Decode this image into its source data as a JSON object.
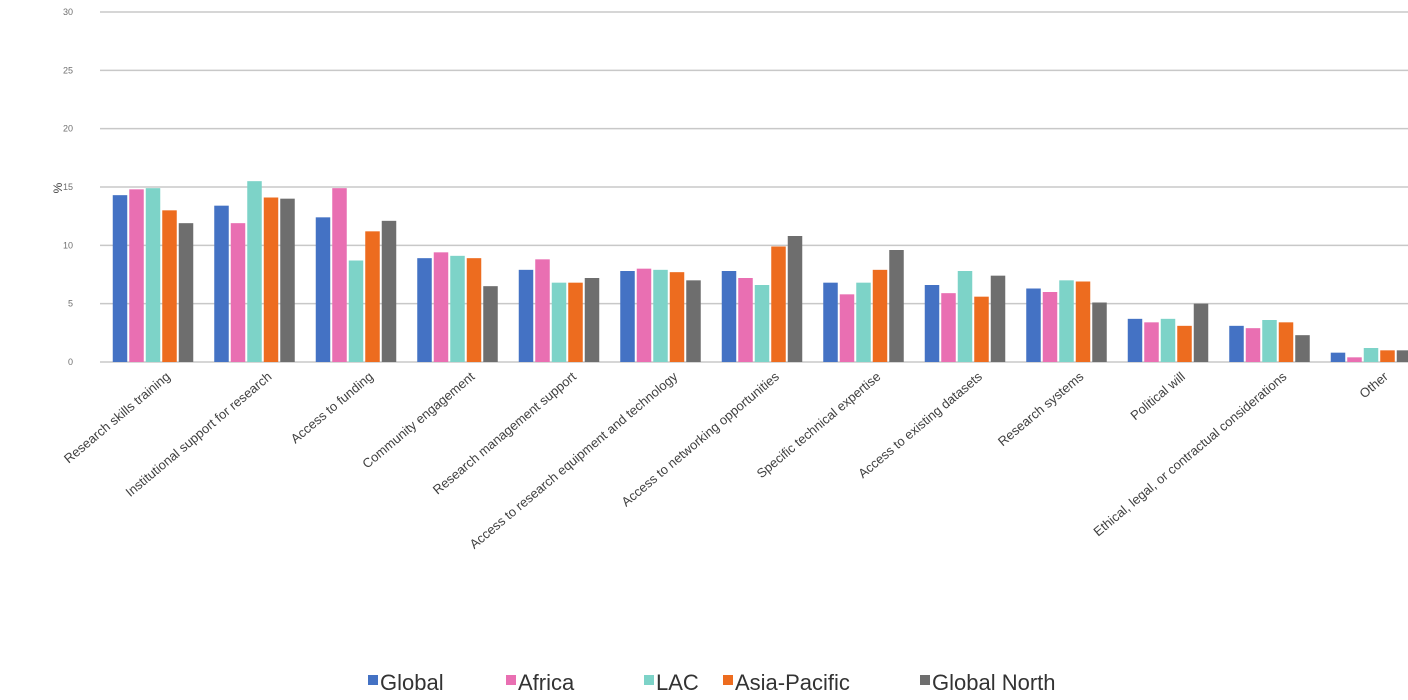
{
  "chart_data": {
    "type": "bar",
    "title": "",
    "xlabel": "",
    "ylabel": "%",
    "ylim": [
      0,
      30
    ],
    "yticks": [
      0,
      5,
      10,
      15,
      20,
      25,
      30
    ],
    "grid": true,
    "legend_position": "bottom",
    "categories": [
      "Research skills training",
      "Institutional support for research",
      "Access to funding",
      "Community engagement",
      "Research management support",
      "Access to research equipment and technology",
      "Access to networking opportunities",
      "Specific technical expertise",
      "Access to existing datasets",
      "Research systems",
      "Political will",
      "Ethical, legal, or contractual considerations",
      "Other"
    ],
    "series": [
      {
        "name": "Global",
        "color": "#4472c4",
        "values": [
          14.3,
          13.4,
          12.4,
          8.9,
          7.9,
          7.8,
          7.8,
          6.8,
          6.6,
          6.3,
          3.7,
          3.1,
          0.8
        ]
      },
      {
        "name": "Africa",
        "color": "#e96fb2",
        "values": [
          14.8,
          11.9,
          14.9,
          9.4,
          8.8,
          8.0,
          7.2,
          5.8,
          5.9,
          6.0,
          3.4,
          2.9,
          0.4
        ]
      },
      {
        "name": "LAC",
        "color": "#7dd3c8",
        "values": [
          14.9,
          15.5,
          8.7,
          9.1,
          6.8,
          7.9,
          6.6,
          6.8,
          7.8,
          7.0,
          3.7,
          3.6,
          1.2
        ]
      },
      {
        "name": "Asia-Pacific",
        "color": "#ed6c1f",
        "values": [
          13.0,
          14.1,
          11.2,
          8.9,
          6.8,
          7.7,
          9.9,
          7.9,
          5.6,
          6.9,
          3.1,
          3.4,
          1.0
        ]
      },
      {
        "name": "Global North",
        "color": "#6e6e6e",
        "values": [
          11.9,
          14.0,
          12.1,
          6.5,
          7.2,
          7.0,
          10.8,
          9.6,
          7.4,
          5.1,
          5.0,
          2.3,
          1.0
        ]
      }
    ]
  }
}
